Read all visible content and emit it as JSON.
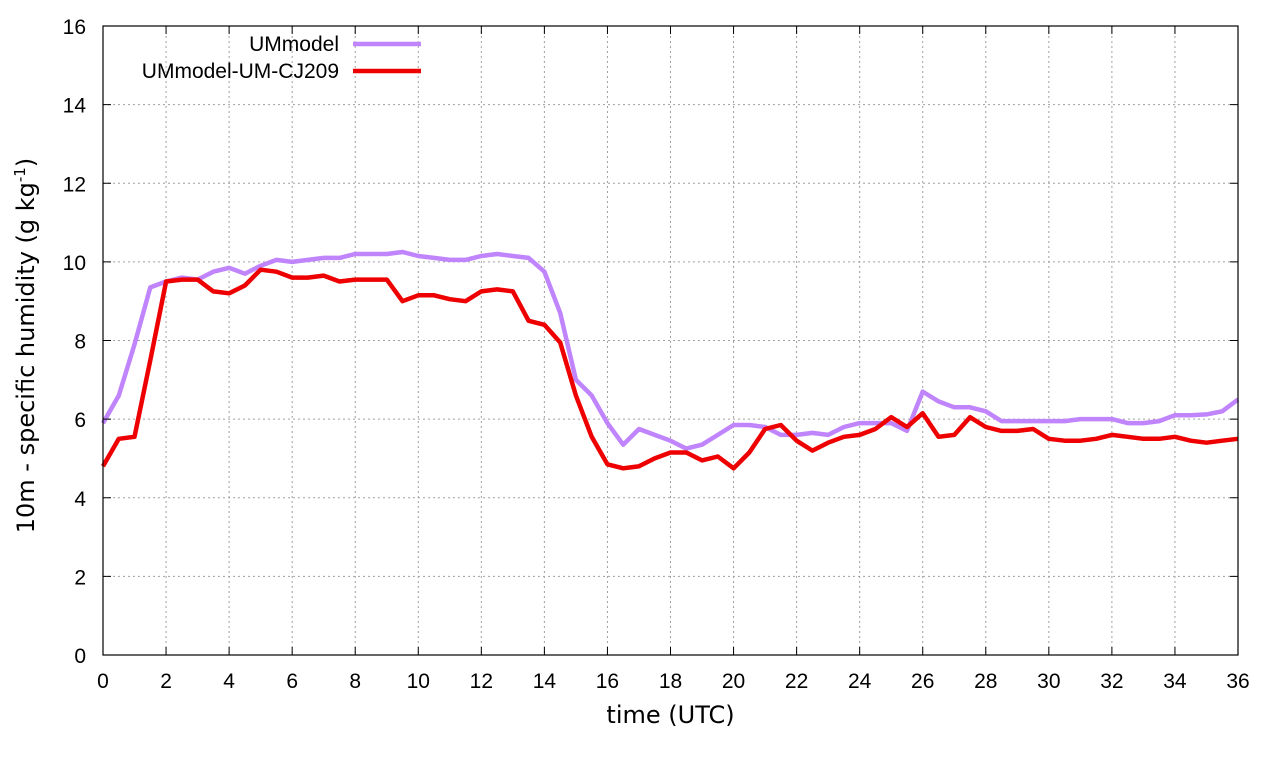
{
  "chart_data": {
    "type": "line",
    "xlabel": "time (UTC)",
    "ylabel": {
      "main": "10m - specific humidity (g kg",
      "sup": "-1",
      "close": ")"
    },
    "xlim": [
      0,
      36
    ],
    "ylim": [
      0,
      16
    ],
    "xticks": [
      0,
      2,
      4,
      6,
      8,
      10,
      12,
      14,
      16,
      18,
      20,
      22,
      24,
      26,
      28,
      30,
      32,
      34,
      36
    ],
    "yticks": [
      0,
      2,
      4,
      6,
      8,
      10,
      12,
      14,
      16
    ],
    "grid": true,
    "legend_position": "top-left",
    "series": [
      {
        "name": "UMmodel",
        "color": "#c084fc",
        "x": [
          0,
          0.5,
          1,
          1.5,
          2,
          2.5,
          3,
          3.5,
          4,
          4.5,
          5,
          5.5,
          6,
          6.5,
          7,
          7.5,
          8,
          8.5,
          9,
          9.5,
          10,
          10.5,
          11,
          11.5,
          12,
          12.5,
          13,
          13.5,
          14,
          14.5,
          15,
          15.5,
          16,
          16.5,
          17,
          17.5,
          18,
          18.5,
          19,
          19.5,
          20,
          20.5,
          21,
          21.5,
          22,
          22.5,
          23,
          23.5,
          24,
          24.5,
          25,
          25.5,
          26,
          26.5,
          27,
          27.5,
          28,
          28.5,
          29,
          29.5,
          30,
          30.5,
          31,
          31.5,
          32,
          32.5,
          33,
          33.5,
          34,
          34.5,
          35,
          35.5,
          36
        ],
        "y": [
          5.9,
          6.6,
          7.9,
          9.35,
          9.5,
          9.6,
          9.55,
          9.75,
          9.85,
          9.7,
          9.9,
          10.05,
          10.0,
          10.05,
          10.1,
          10.1,
          10.2,
          10.2,
          10.2,
          10.25,
          10.15,
          10.1,
          10.05,
          10.05,
          10.15,
          10.2,
          10.15,
          10.1,
          9.75,
          8.7,
          7.0,
          6.6,
          5.9,
          5.35,
          5.75,
          5.6,
          5.45,
          5.25,
          5.35,
          5.6,
          5.85,
          5.85,
          5.8,
          5.6,
          5.6,
          5.65,
          5.6,
          5.8,
          5.9,
          5.9,
          5.9,
          5.7,
          6.7,
          6.45,
          6.3,
          6.3,
          6.2,
          5.95,
          5.95,
          5.95,
          5.95,
          5.95,
          6.0,
          6.0,
          6.0,
          5.9,
          5.9,
          5.95,
          6.1,
          6.1,
          6.12,
          6.2,
          6.5
        ]
      },
      {
        "name": "UMmodel-UM-CJ209",
        "color": "#ee0000",
        "x": [
          0,
          0.5,
          1,
          1.5,
          2,
          2.5,
          3,
          3.5,
          4,
          4.5,
          5,
          5.5,
          6,
          6.5,
          7,
          7.5,
          8,
          8.5,
          9,
          9.5,
          10,
          10.5,
          11,
          11.5,
          12,
          12.5,
          13,
          13.5,
          14,
          14.5,
          15,
          15.5,
          16,
          16.5,
          17,
          17.5,
          18,
          18.5,
          19,
          19.5,
          20,
          20.5,
          21,
          21.5,
          22,
          22.5,
          23,
          23.5,
          24,
          24.5,
          25,
          25.5,
          26,
          26.5,
          27,
          27.5,
          28,
          28.5,
          29,
          29.5,
          30,
          30.5,
          31,
          31.5,
          32,
          32.5,
          33,
          33.5,
          34,
          34.5,
          35,
          35.5,
          36
        ],
        "y": [
          4.8,
          5.5,
          5.55,
          7.5,
          9.5,
          9.55,
          9.55,
          9.25,
          9.2,
          9.4,
          9.8,
          9.75,
          9.6,
          9.6,
          9.65,
          9.5,
          9.55,
          9.55,
          9.55,
          9.0,
          9.15,
          9.15,
          9.05,
          9.0,
          9.25,
          9.3,
          9.25,
          8.5,
          8.4,
          7.95,
          6.6,
          5.55,
          4.85,
          4.75,
          4.8,
          5.0,
          5.15,
          5.15,
          4.95,
          5.05,
          4.75,
          5.15,
          5.75,
          5.85,
          5.45,
          5.2,
          5.4,
          5.55,
          5.6,
          5.75,
          6.05,
          5.8,
          6.15,
          5.55,
          5.6,
          6.05,
          5.8,
          5.7,
          5.7,
          5.75,
          5.5,
          5.45,
          5.45,
          5.5,
          5.6,
          5.55,
          5.5,
          5.5,
          5.55,
          5.45,
          5.4,
          5.45,
          5.5
        ]
      }
    ]
  }
}
